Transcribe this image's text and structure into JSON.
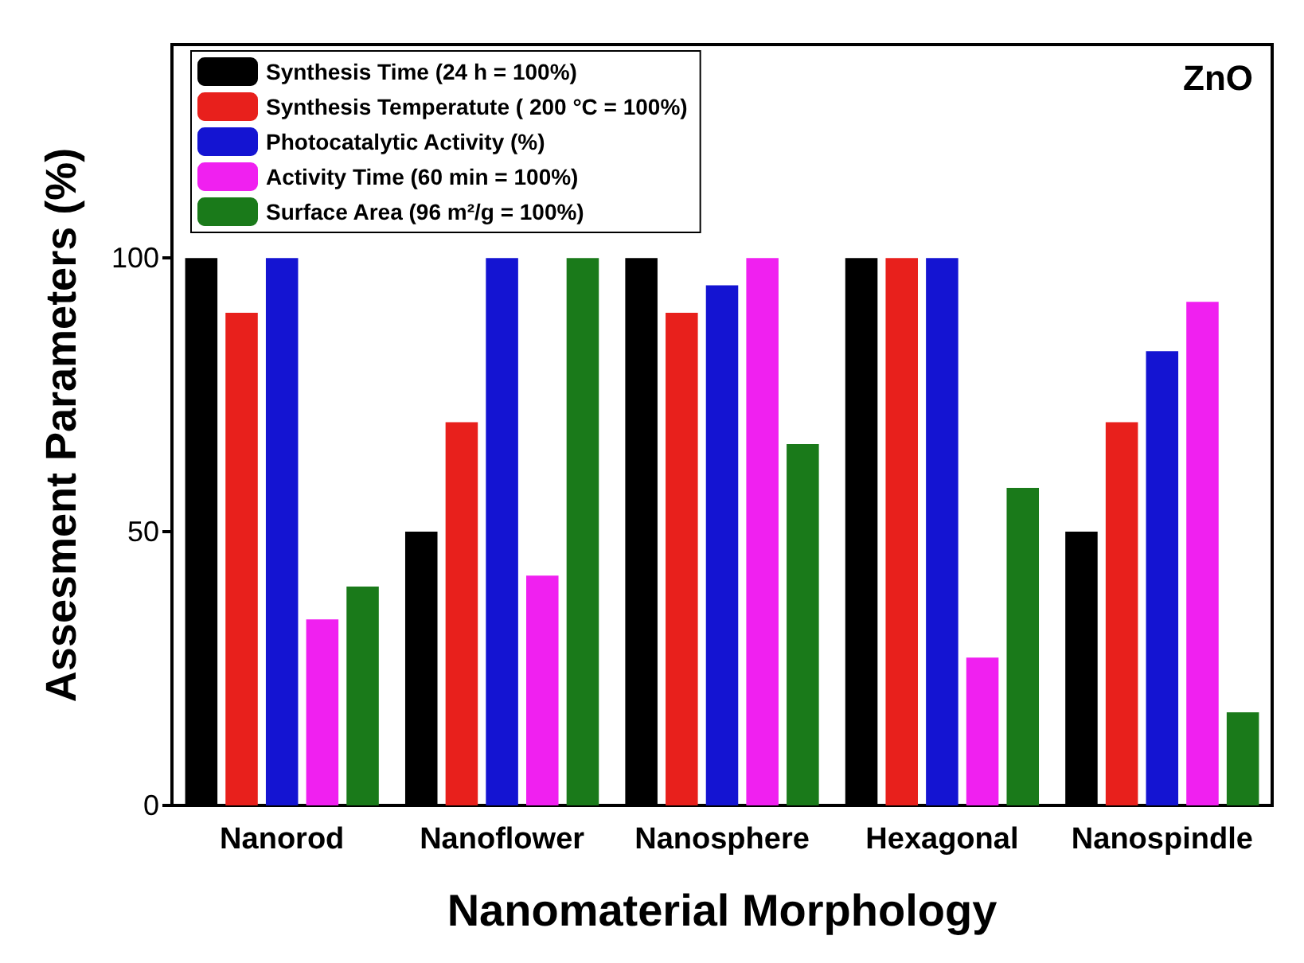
{
  "chart_data": {
    "type": "bar",
    "xlabel": "Nanomaterial Morphology",
    "ylabel": "Assesment Parameters (%)",
    "annotations": [
      "ZnO"
    ],
    "categories": [
      "Nanorod",
      "Nanoflower",
      "Nanosphere",
      "Hexagonal",
      "Nanospindle"
    ],
    "series": [
      {
        "name": "Synthesis Time (24 h = 100%)",
        "color": "#000000",
        "values": [
          100,
          50,
          100,
          100,
          50
        ]
      },
      {
        "name": "Synthesis Temperatute ( 200 °C = 100%)",
        "color": "#e8201c",
        "values": [
          90,
          70,
          90,
          100,
          70
        ]
      },
      {
        "name": "Photocatalytic Activity (%)",
        "color": "#1414d2",
        "values": [
          100,
          100,
          95,
          100,
          83
        ]
      },
      {
        "name": "Activity Time (60 min = 100%)",
        "color": "#f020f0",
        "values": [
          34,
          42,
          100,
          27,
          92
        ]
      },
      {
        "name": "Surface Area (96 m²/g = 100%)",
        "color": "#1a7a1a",
        "values": [
          40,
          100,
          66,
          58,
          17
        ]
      }
    ],
    "ylim": [
      0,
      139
    ],
    "yticks": [
      0,
      50,
      100
    ],
    "grid": false,
    "legend": "top left"
  }
}
